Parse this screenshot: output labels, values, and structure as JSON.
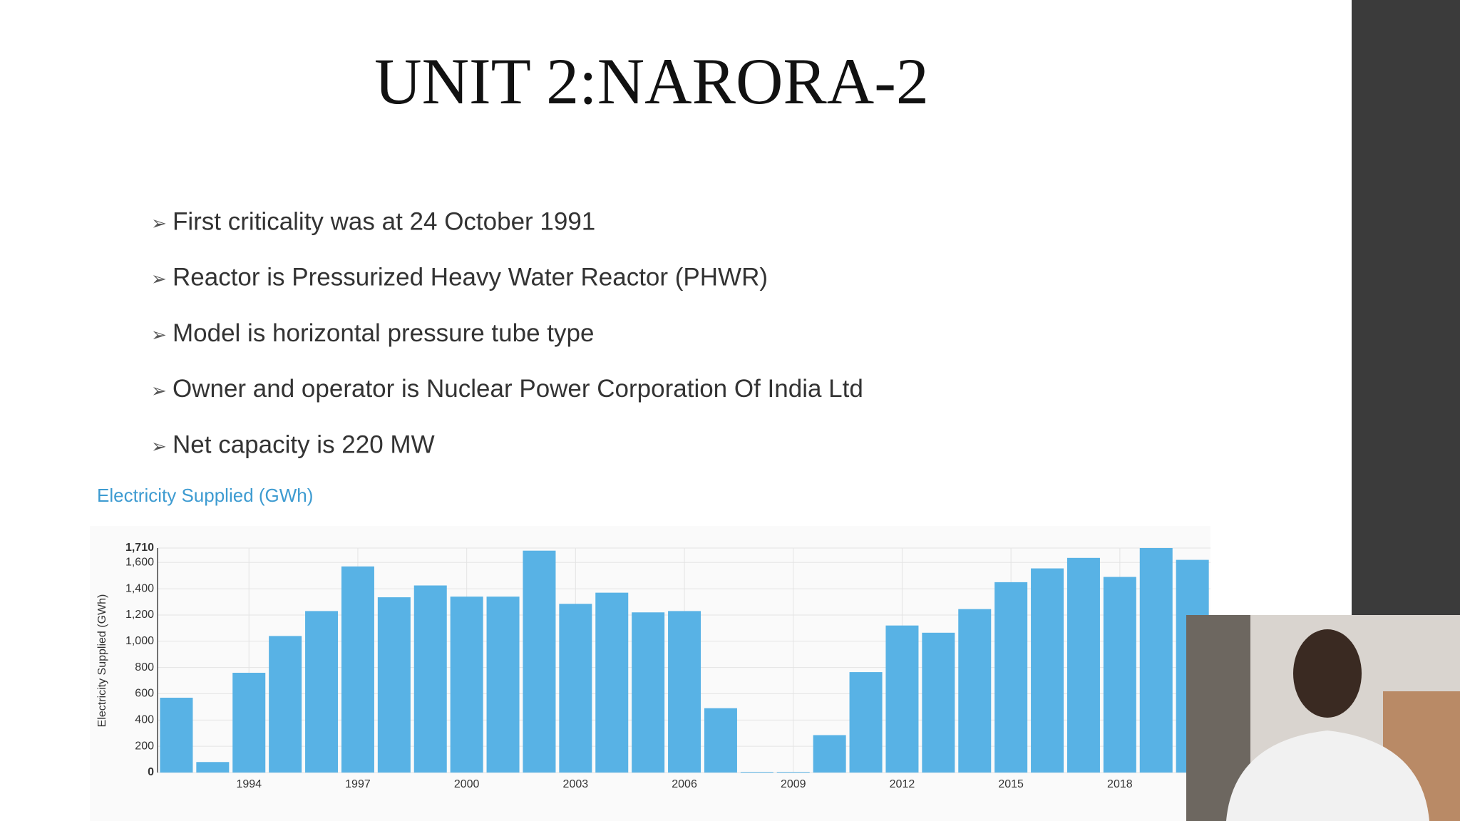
{
  "slide": {
    "title": "UNIT 2:NARORA-2",
    "bullets": [
      "First criticality was at 24 October 1991",
      "Reactor is Pressurized Heavy Water Reactor (PHWR)",
      "Model is horizontal pressure tube type",
      "Owner and operator is Nuclear Power Corporation Of India Ltd",
      "Net capacity is 220 MW"
    ]
  },
  "chart_data": {
    "type": "bar",
    "title": "Electricity Supplied (GWh)",
    "y_label": "Electricity Supplied (GWh)",
    "categories": [
      null,
      null,
      "1994",
      null,
      null,
      "1997",
      null,
      null,
      "2000",
      null,
      null,
      "2003",
      null,
      null,
      "2006",
      null,
      null,
      "2009",
      null,
      null,
      "2012",
      null,
      null,
      "2015",
      null,
      null,
      "2018",
      null,
      null
    ],
    "values": [
      570,
      80,
      760,
      1040,
      1230,
      1570,
      1335,
      1425,
      1340,
      1340,
      1690,
      1285,
      1370,
      1220,
      1230,
      490,
      5,
      5,
      285,
      765,
      1120,
      1065,
      1245,
      1450,
      1555,
      1635,
      1490,
      1710,
      1620
    ],
    "color": "#58b2e5",
    "ylim": [
      0,
      1710
    ],
    "yticks": [
      0,
      200,
      400,
      600,
      800,
      {
        "value": 1000,
        "label": "1,000"
      },
      {
        "value": 1200,
        "label": "1,200"
      },
      {
        "value": 1400,
        "label": "1,400"
      },
      {
        "value": 1600,
        "label": "1,600"
      },
      {
        "value": 1710,
        "label": "1,710"
      }
    ],
    "grid": true
  }
}
